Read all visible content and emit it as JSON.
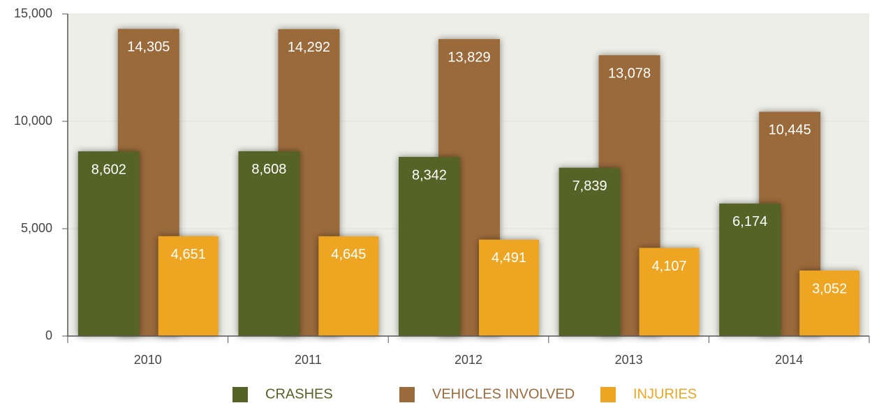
{
  "chart_data": {
    "type": "bar",
    "categories": [
      "2010",
      "2011",
      "2012",
      "2013",
      "2014"
    ],
    "series": [
      {
        "name": "CRASHES",
        "color": "#556326",
        "values": [
          8602,
          8608,
          8342,
          7839,
          6174
        ],
        "value_labels": [
          "8,602",
          "8,608",
          "8,342",
          "7,839",
          "6,174"
        ]
      },
      {
        "name": "VEHICLES INVOLVED",
        "color": "#9b6a3b",
        "values": [
          14305,
          14292,
          13829,
          13078,
          10445
        ],
        "value_labels": [
          "14,305",
          "14,292",
          "13,829",
          "13,078",
          "10,445"
        ]
      },
      {
        "name": "INJURIES",
        "color": "#eea622",
        "values": [
          4651,
          4645,
          4491,
          4107,
          3052
        ],
        "value_labels": [
          "4,651",
          "4,645",
          "4,491",
          "4,107",
          "3,052"
        ]
      }
    ],
    "ylim": [
      0,
      15000
    ],
    "yticks": [
      0,
      {
        "value": 5000,
        "label": "5,000"
      },
      {
        "value": 10000,
        "label": "10,000"
      },
      {
        "value": 15000,
        "label": "15,000"
      }
    ],
    "grid": true
  }
}
